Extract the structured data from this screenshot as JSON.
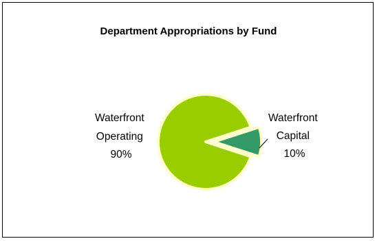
{
  "chart_data": {
    "type": "pie",
    "title": "Department Appropriations by Fund",
    "slices": [
      {
        "name": "Waterfront Operating",
        "percent_label": "90%",
        "value": 90,
        "color": "#9ACD00"
      },
      {
        "name": "Waterfront Capital",
        "percent_label": "10%",
        "value": 10,
        "color": "#339966",
        "exploded": true
      }
    ],
    "slice_border_color": "#FFFFCC",
    "legend": "none",
    "data_labels": "category name and percentage, outside"
  }
}
